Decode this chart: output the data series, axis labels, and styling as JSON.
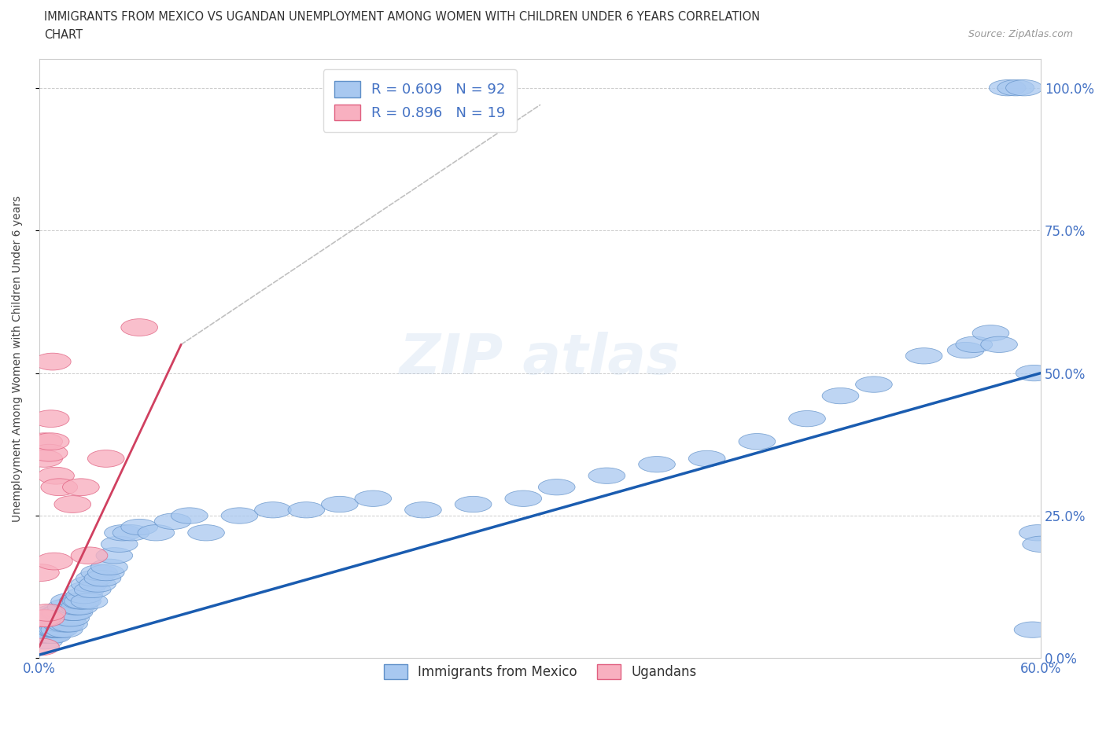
{
  "title_line1": "IMMIGRANTS FROM MEXICO VS UGANDAN UNEMPLOYMENT AMONG WOMEN WITH CHILDREN UNDER 6 YEARS CORRELATION",
  "title_line2": "CHART",
  "source": "Source: ZipAtlas.com",
  "ylabel": "Unemployment Among Women with Children Under 6 years",
  "xlim": [
    0.0,
    0.6
  ],
  "ylim": [
    0.0,
    1.05
  ],
  "xticks": [
    0.0,
    0.1,
    0.2,
    0.3,
    0.4,
    0.5,
    0.6
  ],
  "xticklabels": [
    "0.0%",
    "",
    "",
    "",
    "",
    "",
    "60.0%"
  ],
  "yticks": [
    0.0,
    0.25,
    0.5,
    0.75,
    1.0
  ],
  "yticklabels": [
    "0.0%",
    "25.0%",
    "50.0%",
    "75.0%",
    "100.0%"
  ],
  "mexico_R": 0.609,
  "mexico_N": 92,
  "uganda_R": 0.896,
  "uganda_N": 19,
  "mexico_color": "#a8c8f0",
  "mexico_edge": "#6090c8",
  "uganda_color": "#f8b0c0",
  "uganda_edge": "#e06080",
  "mexico_line_color": "#1a5cb0",
  "uganda_line_color": "#d04060",
  "uganda_dash_color": "#c0c0c0",
  "background_color": "#ffffff",
  "mexico_x": [
    0.001,
    0.002,
    0.003,
    0.004,
    0.005,
    0.005,
    0.005,
    0.006,
    0.006,
    0.006,
    0.007,
    0.007,
    0.007,
    0.008,
    0.008,
    0.008,
    0.009,
    0.009,
    0.009,
    0.01,
    0.01,
    0.01,
    0.011,
    0.011,
    0.012,
    0.012,
    0.013,
    0.013,
    0.014,
    0.015,
    0.015,
    0.016,
    0.016,
    0.017,
    0.018,
    0.018,
    0.019,
    0.02,
    0.021,
    0.022,
    0.023,
    0.024,
    0.025,
    0.026,
    0.027,
    0.028,
    0.03,
    0.03,
    0.032,
    0.033,
    0.035,
    0.036,
    0.038,
    0.04,
    0.042,
    0.045,
    0.048,
    0.05,
    0.055,
    0.06,
    0.07,
    0.08,
    0.09,
    0.1,
    0.12,
    0.14,
    0.16,
    0.18,
    0.2,
    0.23,
    0.26,
    0.29,
    0.31,
    0.34,
    0.37,
    0.4,
    0.43,
    0.46,
    0.48,
    0.5,
    0.53,
    0.555,
    0.56,
    0.57,
    0.575,
    0.58,
    0.585,
    0.59,
    0.595,
    0.596,
    0.598,
    0.6
  ],
  "mexico_y": [
    0.04,
    0.05,
    0.03,
    0.06,
    0.04,
    0.05,
    0.06,
    0.04,
    0.05,
    0.07,
    0.04,
    0.05,
    0.06,
    0.04,
    0.06,
    0.07,
    0.05,
    0.06,
    0.08,
    0.05,
    0.06,
    0.07,
    0.05,
    0.07,
    0.05,
    0.08,
    0.06,
    0.08,
    0.06,
    0.05,
    0.08,
    0.06,
    0.09,
    0.07,
    0.06,
    0.1,
    0.07,
    0.08,
    0.08,
    0.09,
    0.1,
    0.09,
    0.1,
    0.1,
    0.11,
    0.12,
    0.1,
    0.13,
    0.12,
    0.14,
    0.13,
    0.15,
    0.14,
    0.15,
    0.16,
    0.18,
    0.2,
    0.22,
    0.22,
    0.23,
    0.22,
    0.24,
    0.25,
    0.22,
    0.25,
    0.26,
    0.26,
    0.27,
    0.28,
    0.26,
    0.27,
    0.28,
    0.3,
    0.32,
    0.34,
    0.35,
    0.38,
    0.42,
    0.46,
    0.48,
    0.53,
    0.54,
    0.55,
    0.57,
    0.55,
    1.0,
    1.0,
    1.0,
    0.05,
    0.5,
    0.22,
    0.2
  ],
  "uganda_x": [
    0.001,
    0.001,
    0.002,
    0.003,
    0.003,
    0.004,
    0.005,
    0.006,
    0.007,
    0.007,
    0.008,
    0.009,
    0.01,
    0.012,
    0.02,
    0.025,
    0.03,
    0.04,
    0.06
  ],
  "uganda_y": [
    0.15,
    0.02,
    0.07,
    0.35,
    0.38,
    0.07,
    0.08,
    0.36,
    0.38,
    0.42,
    0.52,
    0.17,
    0.32,
    0.3,
    0.27,
    0.3,
    0.18,
    0.35,
    0.58
  ],
  "mexico_trendline": [
    0.0,
    0.006,
    0.6,
    0.5
  ],
  "uganda_trendline_solid": [
    0.0,
    0.02,
    0.085,
    0.55
  ],
  "uganda_trendline_dash": [
    0.085,
    0.55,
    0.3,
    0.97
  ]
}
